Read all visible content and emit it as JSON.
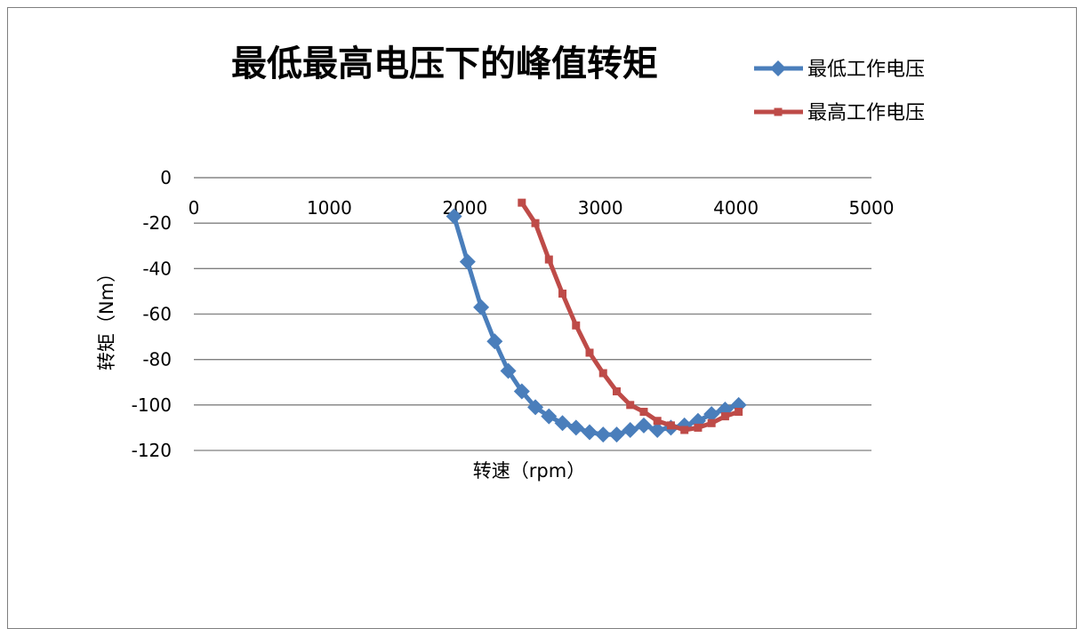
{
  "chart_data": {
    "type": "line",
    "title": "最低最高电压下的峰值转矩",
    "xlabel": "转速（rpm）",
    "ylabel": "转矩（Nm）",
    "xlim": [
      0,
      5000
    ],
    "ylim": [
      -120,
      0
    ],
    "xticks": [
      0,
      1000,
      2000,
      3000,
      4000,
      5000
    ],
    "yticks": [
      0,
      -20,
      -40,
      -60,
      -80,
      -100,
      -120
    ],
    "x_axis_position": "top",
    "grid": "horizontal",
    "legend_position": "top-right",
    "series": [
      {
        "name": "最低工作电压",
        "color": "#4a7ebb",
        "marker": "diamond",
        "x": [
          1920,
          2020,
          2120,
          2220,
          2320,
          2420,
          2520,
          2620,
          2720,
          2820,
          2920,
          3020,
          3120,
          3220,
          3320,
          3420,
          3520,
          3620,
          3720,
          3820,
          3920,
          4020
        ],
        "y": [
          -17,
          -37,
          -57,
          -72,
          -85,
          -94,
          -101,
          -105,
          -108,
          -110,
          -112,
          -113,
          -113,
          -111,
          -109,
          -111,
          -110,
          -109,
          -107,
          -104,
          -102,
          -100
        ]
      },
      {
        "name": "最高工作电压",
        "color": "#be4b48",
        "marker": "square",
        "x": [
          2420,
          2520,
          2620,
          2720,
          2820,
          2920,
          3020,
          3120,
          3220,
          3320,
          3420,
          3520,
          3620,
          3720,
          3820,
          3920,
          4020
        ],
        "y": [
          -11,
          -20,
          -36,
          -51,
          -65,
          -77,
          -86,
          -94,
          -100,
          -103,
          -107,
          -109,
          -111,
          -110,
          -108,
          -105,
          -103
        ]
      }
    ]
  }
}
